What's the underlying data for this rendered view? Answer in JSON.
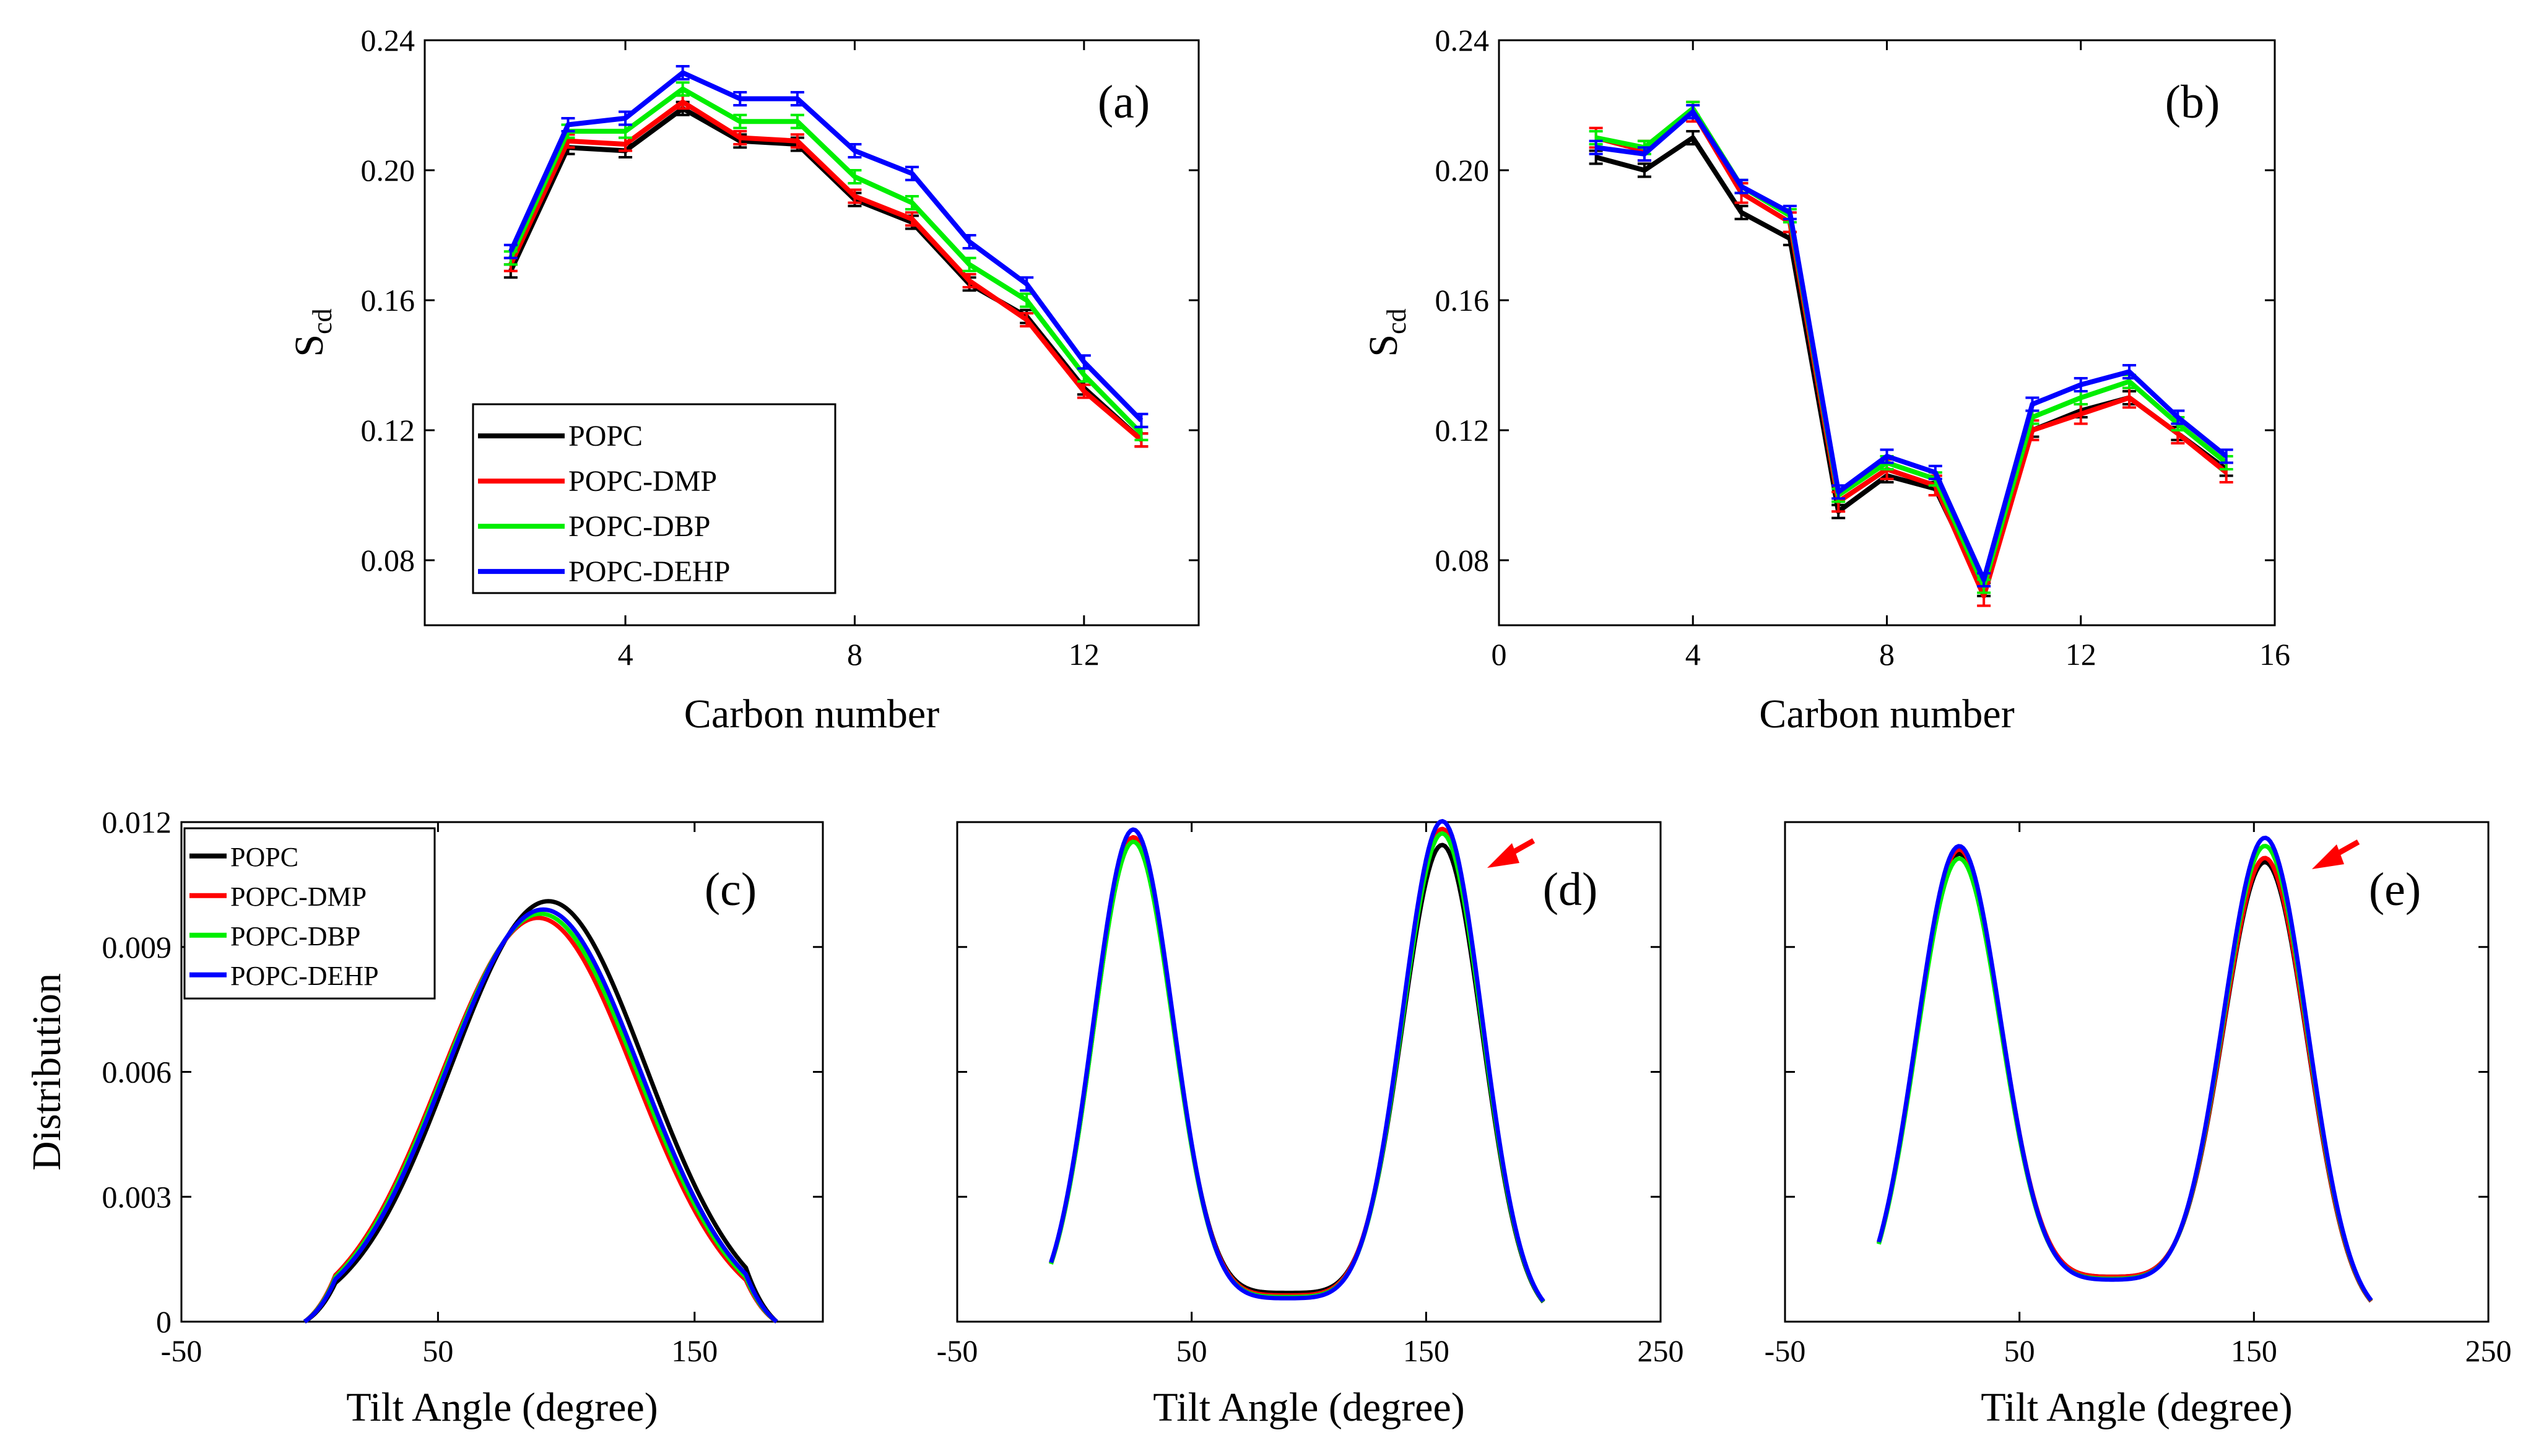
{
  "figure": {
    "panel_a": {
      "type": "line",
      "label": "(a)",
      "xlabel": "Carbon number",
      "ylabel": "S",
      "ylabel_sub": "cd",
      "xlim": [
        0.5,
        14
      ],
      "ylim": [
        0.06,
        0.24
      ],
      "xticks": [
        4,
        8,
        12
      ],
      "yticks": [
        0.08,
        0.12,
        0.16,
        0.2,
        0.24
      ],
      "ytick_labels": [
        "0.08",
        "0.12",
        "0.16",
        "0.20",
        "0.24"
      ],
      "x": [
        2,
        3,
        4,
        5,
        6,
        7,
        8,
        9,
        10,
        11,
        12,
        13
      ],
      "series": [
        {
          "name": "POPC",
          "color": "#000000",
          "values": [
            0.169,
            0.207,
            0.206,
            0.219,
            0.209,
            0.208,
            0.191,
            0.184,
            0.165,
            0.155,
            0.133,
            0.117
          ],
          "error": 0.002
        },
        {
          "name": "POPC-DMP",
          "color": "#ff0000",
          "values": [
            0.171,
            0.209,
            0.208,
            0.221,
            0.21,
            0.209,
            0.192,
            0.185,
            0.166,
            0.154,
            0.132,
            0.117
          ],
          "error": 0.002
        },
        {
          "name": "POPC-DBP",
          "color": "#00ee00",
          "values": [
            0.173,
            0.212,
            0.212,
            0.225,
            0.215,
            0.215,
            0.198,
            0.19,
            0.171,
            0.16,
            0.137,
            0.119
          ],
          "error": 0.002
        },
        {
          "name": "POPC-DEHP",
          "color": "#0000ff",
          "values": [
            0.175,
            0.214,
            0.216,
            0.23,
            0.222,
            0.222,
            0.206,
            0.199,
            0.178,
            0.165,
            0.141,
            0.123
          ],
          "error": 0.002
        }
      ],
      "legend": [
        "POPC",
        "POPC-DMP",
        "POPC-DBP",
        "POPC-DEHP"
      ]
    },
    "panel_b": {
      "type": "line",
      "label": "(b)",
      "xlabel": "Carbon number",
      "ylabel": "S",
      "ylabel_sub": "cd",
      "xlim": [
        0,
        16
      ],
      "ylim": [
        0.06,
        0.24
      ],
      "xticks": [
        0,
        4,
        8,
        12,
        16
      ],
      "yticks": [
        0.08,
        0.12,
        0.16,
        0.2,
        0.24
      ],
      "ytick_labels": [
        "0.08",
        "0.12",
        "0.16",
        "0.20",
        "0.24"
      ],
      "x": [
        2,
        3,
        4,
        5,
        6,
        7,
        8,
        9,
        10,
        11,
        12,
        13,
        14,
        15
      ],
      "series": [
        {
          "name": "POPC",
          "color": "#000000",
          "values": [
            0.204,
            0.2,
            0.21,
            0.187,
            0.179,
            0.095,
            0.106,
            0.102,
            0.071,
            0.12,
            0.126,
            0.13,
            0.119,
            0.108
          ],
          "error": 0.002
        },
        {
          "name": "POPC-DMP",
          "color": "#ff0000",
          "values": [
            0.21,
            0.206,
            0.218,
            0.193,
            0.184,
            0.098,
            0.108,
            0.103,
            0.069,
            0.12,
            0.125,
            0.13,
            0.119,
            0.107
          ],
          "error": 0.003
        },
        {
          "name": "POPC-DBP",
          "color": "#00ee00",
          "values": [
            0.21,
            0.207,
            0.219,
            0.195,
            0.186,
            0.1,
            0.11,
            0.105,
            0.072,
            0.124,
            0.13,
            0.135,
            0.122,
            0.11
          ],
          "error": 0.002
        },
        {
          "name": "POPC-DEHP",
          "color": "#0000ff",
          "values": [
            0.207,
            0.205,
            0.218,
            0.195,
            0.187,
            0.101,
            0.112,
            0.107,
            0.074,
            0.128,
            0.134,
            0.138,
            0.124,
            0.112
          ],
          "error": 0.002
        }
      ]
    },
    "panel_c": {
      "type": "line",
      "label": "(c)",
      "xlabel": "Tilt Angle (degree)",
      "ylabel": "Distribution",
      "xlim": [
        -50,
        200
      ],
      "ylim": [
        0,
        0.012
      ],
      "xticks": [
        -50,
        50,
        150
      ],
      "yticks": [
        0,
        0.003,
        0.006,
        0.009,
        0.012
      ],
      "ytick_labels": [
        "0",
        "0.003",
        "0.006",
        "0.009",
        "0.012"
      ],
      "curve": {
        "kind": "gaussian",
        "center": 90,
        "sigma": 38,
        "start": -2,
        "end": 182
      },
      "series": [
        {
          "name": "POPC",
          "color": "#000000",
          "peak": 0.0101,
          "center": 93
        },
        {
          "name": "POPC-DMP",
          "color": "#ff0000",
          "peak": 0.0097,
          "center": 89
        },
        {
          "name": "POPC-DBP",
          "color": "#00ee00",
          "peak": 0.0098,
          "center": 90
        },
        {
          "name": "POPC-DEHP",
          "color": "#0000ff",
          "peak": 0.0099,
          "center": 91
        }
      ],
      "legend": [
        "POPC",
        "POPC-DMP",
        "POPC-DBP",
        "POPC-DEHP"
      ]
    },
    "panel_d": {
      "type": "line",
      "label": "(d)",
      "xlabel": "Tilt Angle (degree)",
      "xlim": [
        -50,
        250
      ],
      "ylim": [
        0,
        0.012
      ],
      "xticks": [
        -50,
        50,
        150,
        250
      ],
      "curve": {
        "kind": "bimodal",
        "c1": 25,
        "c2": 157,
        "sigma": 17,
        "start": -10,
        "end": 200
      },
      "series": [
        {
          "name": "POPC",
          "color": "#000000",
          "p1": 0.0114,
          "p2": 0.0113,
          "trough": 0.00068
        },
        {
          "name": "POPC-DMP",
          "color": "#ff0000",
          "p1": 0.0115,
          "p2": 0.0117,
          "trough": 0.00062
        },
        {
          "name": "POPC-DBP",
          "color": "#00ee00",
          "p1": 0.0114,
          "p2": 0.0116,
          "trough": 0.00058
        },
        {
          "name": "POPC-DEHP",
          "color": "#0000ff",
          "p1": 0.0117,
          "p2": 0.0119,
          "trough": 0.00055
        }
      ],
      "arrow_color": "#ff0000"
    },
    "panel_e": {
      "type": "line",
      "label": "(e)",
      "xlabel": "Tilt Angle (degree)",
      "xlim": [
        -50,
        250
      ],
      "ylim": [
        0,
        0.012
      ],
      "xticks": [
        -50,
        50,
        150,
        250
      ],
      "curve": {
        "kind": "bimodal",
        "c1": 24,
        "c2": 155,
        "sigma": 18,
        "start": -10,
        "end": 200
      },
      "series": [
        {
          "name": "POPC",
          "color": "#000000",
          "p1": 0.011,
          "p2": 0.0108,
          "trough": 0.00105
        },
        {
          "name": "POPC-DMP",
          "color": "#ff0000",
          "p1": 0.0111,
          "p2": 0.0109,
          "trough": 0.00105
        },
        {
          "name": "POPC-DBP",
          "color": "#00ee00",
          "p1": 0.0109,
          "p2": 0.0112,
          "trough": 0.001
        },
        {
          "name": "POPC-DEHP",
          "color": "#0000ff",
          "p1": 0.0112,
          "p2": 0.0114,
          "trough": 0.00098
        }
      ],
      "arrow_color": "#ff0000"
    }
  }
}
